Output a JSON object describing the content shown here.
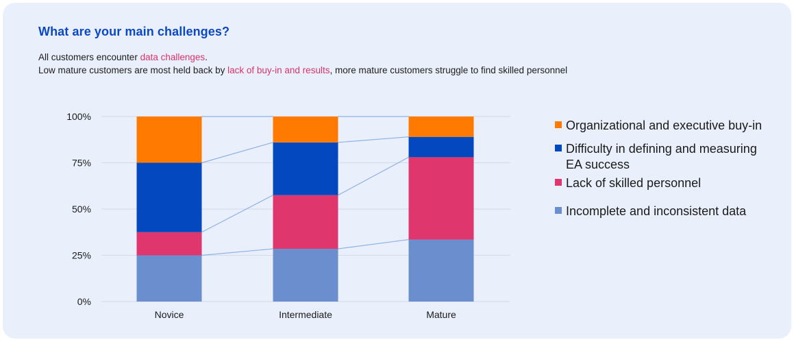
{
  "header": {
    "title": "What are your main challenges?",
    "line1_prefix": "All customers encounter ",
    "line1_highlight": "data challenges",
    "line1_suffix": ".",
    "line2_prefix": "Low mature customers are most held back by ",
    "line2_highlight": "lack of buy-in and results",
    "line2_suffix": ", more mature customers struggle to find skilled personnel"
  },
  "colors": {
    "title": "#0a48c4",
    "highlight": "#d9336a",
    "background": "#e9effb",
    "connector": "#8fb1e6",
    "grid": "#d3dbea"
  },
  "chart_data": {
    "type": "bar",
    "stacked": true,
    "categories": [
      "Novice",
      "Intermediate",
      "Mature"
    ],
    "ylim": [
      0,
      100
    ],
    "yticks": [
      0,
      25,
      50,
      75,
      100
    ],
    "ytick_labels": [
      "0%",
      "25%",
      "50%",
      "75%",
      "100%"
    ],
    "series": [
      {
        "name": "Incomplete and inconsistent data",
        "color": "#6b8fce",
        "values": [
          25,
          28.5,
          33.5
        ]
      },
      {
        "name": "Lack of skilled personnel",
        "color": "#e0366e",
        "values": [
          12.5,
          29,
          44.5
        ]
      },
      {
        "name": "Difficulty in defining and measuring EA success",
        "color": "#0448bf",
        "values": [
          37.5,
          28.5,
          11
        ]
      },
      {
        "name": "Organizational and executive buy-in",
        "color": "#ff7a00",
        "values": [
          25,
          14,
          11
        ]
      }
    ],
    "legend": {
      "placement": "right",
      "entries": [
        {
          "lines": [
            "Organizational and executive buy-in"
          ],
          "color": "#ff7a00"
        },
        {
          "lines": [
            "Difficulty in defining and measuring",
            "EA success"
          ],
          "color": "#0448bf"
        },
        {
          "lines": [
            "Lack of skilled personnel"
          ],
          "color": "#e0366e"
        },
        {
          "lines": [
            "Incomplete and inconsistent data"
          ],
          "color": "#6b8fce"
        }
      ]
    },
    "connector_lines": true,
    "title": "",
    "xlabel": "",
    "ylabel": ""
  }
}
